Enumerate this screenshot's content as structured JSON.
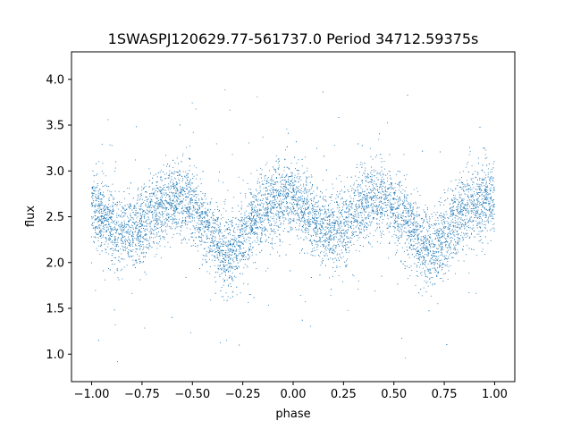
{
  "chart_data": {
    "type": "scatter",
    "title": "1SWASPJ120629.77-561737.0 Period 34712.59375s",
    "xlabel": "phase",
    "ylabel": "flux",
    "xlim": [
      -1.1,
      1.1
    ],
    "ylim": [
      0.7,
      4.3
    ],
    "xticks": [
      -1.0,
      -0.75,
      -0.5,
      -0.25,
      0.0,
      0.25,
      0.5,
      0.75,
      1.0
    ],
    "xtick_labels": [
      "−1.00",
      "−0.75",
      "−0.50",
      "−0.25",
      "0.00",
      "0.25",
      "0.50",
      "0.75",
      "1.00"
    ],
    "yticks": [
      1.0,
      1.5,
      2.0,
      2.5,
      3.0,
      3.5,
      4.0
    ],
    "ytick_labels": [
      "1.0",
      "1.5",
      "2.0",
      "2.5",
      "3.0",
      "3.5",
      "4.0"
    ],
    "grid": false,
    "marker_color": "#1f77b4",
    "phase_profile": [
      {
        "phase": -1.0,
        "flux": 2.58
      },
      {
        "phase": -0.95,
        "flux": 2.52
      },
      {
        "phase": -0.9,
        "flux": 2.42
      },
      {
        "phase": -0.85,
        "flux": 2.33
      },
      {
        "phase": -0.8,
        "flux": 2.33
      },
      {
        "phase": -0.75,
        "flux": 2.42
      },
      {
        "phase": -0.7,
        "flux": 2.53
      },
      {
        "phase": -0.65,
        "flux": 2.64
      },
      {
        "phase": -0.6,
        "flux": 2.7
      },
      {
        "phase": -0.55,
        "flux": 2.68
      },
      {
        "phase": -0.5,
        "flux": 2.6
      },
      {
        "phase": -0.45,
        "flux": 2.45
      },
      {
        "phase": -0.4,
        "flux": 2.3
      },
      {
        "phase": -0.35,
        "flux": 2.15
      },
      {
        "phase": -0.3,
        "flux": 2.1
      },
      {
        "phase": -0.25,
        "flux": 2.25
      },
      {
        "phase": -0.2,
        "flux": 2.45
      },
      {
        "phase": -0.15,
        "flux": 2.58
      },
      {
        "phase": -0.1,
        "flux": 2.65
      },
      {
        "phase": -0.05,
        "flux": 2.7
      },
      {
        "phase": 0.0,
        "flux": 2.68
      },
      {
        "phase": 0.05,
        "flux": 2.58
      },
      {
        "phase": 0.1,
        "flux": 2.45
      },
      {
        "phase": 0.15,
        "flux": 2.35
      },
      {
        "phase": 0.2,
        "flux": 2.33
      },
      {
        "phase": 0.25,
        "flux": 2.42
      },
      {
        "phase": 0.3,
        "flux": 2.53
      },
      {
        "phase": 0.35,
        "flux": 2.64
      },
      {
        "phase": 0.4,
        "flux": 2.7
      },
      {
        "phase": 0.45,
        "flux": 2.68
      },
      {
        "phase": 0.5,
        "flux": 2.58
      },
      {
        "phase": 0.55,
        "flux": 2.45
      },
      {
        "phase": 0.6,
        "flux": 2.3
      },
      {
        "phase": 0.65,
        "flux": 2.15
      },
      {
        "phase": 0.7,
        "flux": 2.1
      },
      {
        "phase": 0.75,
        "flux": 2.25
      },
      {
        "phase": 0.8,
        "flux": 2.45
      },
      {
        "phase": 0.85,
        "flux": 2.58
      },
      {
        "phase": 0.9,
        "flux": 2.65
      },
      {
        "phase": 0.95,
        "flux": 2.7
      },
      {
        "phase": 1.0,
        "flux": 2.7
      }
    ],
    "scatter_spread": 0.2,
    "point_count": 9000
  }
}
